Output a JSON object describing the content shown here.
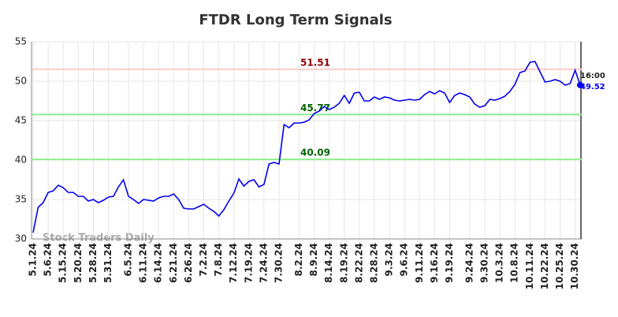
{
  "chart_data": {
    "type": "line",
    "title": "FTDR Long Term Signals",
    "watermark": "Stock Traders Daily",
    "categories": [
      "5.1.24",
      null,
      null,
      "5.6.24",
      null,
      null,
      "5.15.24",
      null,
      null,
      "5.20.24",
      null,
      null,
      "5.28.24",
      null,
      null,
      "5.31.24",
      null,
      null,
      null,
      "6.5.24",
      null,
      null,
      "6.11.24",
      null,
      null,
      "6.14.24",
      null,
      null,
      "6.21.24",
      null,
      null,
      "6.26.24",
      null,
      null,
      "7.2.24",
      null,
      null,
      "7.8.24",
      null,
      null,
      "7.12.24",
      null,
      null,
      "7.19.24",
      null,
      null,
      "7.24.24",
      null,
      null,
      "7.30.24",
      null,
      null,
      null,
      "8.2.24",
      null,
      null,
      "8.9.24",
      null,
      null,
      "8.14.24",
      null,
      null,
      "8.19.24",
      null,
      null,
      "8.22.24",
      null,
      null,
      "8.28.24",
      null,
      null,
      "9.3.24",
      null,
      null,
      "9.6.24",
      null,
      null,
      "9.11.24",
      null,
      null,
      "9.16.24",
      null,
      null,
      "9.19.24",
      null,
      null,
      null,
      "9.24.24",
      null,
      null,
      "9.30.24",
      null,
      null,
      "10.3.24",
      null,
      null,
      "10.8.24",
      null,
      null,
      "10.11.24",
      null,
      null,
      "10.22.24",
      null,
      null,
      "10.25.24",
      null,
      null,
      "10.30.24",
      null
    ],
    "series": [
      {
        "name": "FTDR",
        "color": "#0000ee",
        "values": [
          30.8,
          34.0,
          34.6,
          35.9,
          36.1,
          36.8,
          36.5,
          35.9,
          35.9,
          35.4,
          35.4,
          34.8,
          35.0,
          34.6,
          34.9,
          35.3,
          35.4,
          36.6,
          37.5,
          35.4,
          35.0,
          34.5,
          35.0,
          34.9,
          34.8,
          35.2,
          35.4,
          35.4,
          35.7,
          35.0,
          33.9,
          33.8,
          33.8,
          34.1,
          34.4,
          33.9,
          33.5,
          32.9,
          33.7,
          34.8,
          35.8,
          37.6,
          36.7,
          37.3,
          37.5,
          36.6,
          36.9,
          39.5,
          39.7,
          39.5,
          44.5,
          44.1,
          44.7,
          44.7,
          44.8,
          45.1,
          45.9,
          46.2,
          46.8,
          46.4,
          46.7,
          47.2,
          48.2,
          47.2,
          48.5,
          48.6,
          47.5,
          47.5,
          48.0,
          47.7,
          48.0,
          47.9,
          47.6,
          47.5,
          47.6,
          47.7,
          47.6,
          47.7,
          48.3,
          48.7,
          48.4,
          48.8,
          48.5,
          47.3,
          48.2,
          48.5,
          48.3,
          48.0,
          47.1,
          46.7,
          46.9,
          47.7,
          47.6,
          47.8,
          48.1,
          48.7,
          49.6,
          51.1,
          51.3,
          52.4,
          52.5,
          51.2,
          49.9,
          50.0,
          50.2,
          50.0,
          49.5,
          49.7,
          51.4,
          49.52
        ]
      }
    ],
    "last_label": "16:00",
    "hlines": [
      {
        "value": 51.51,
        "color": "#ffcccc",
        "label_color": "#8b0000"
      },
      {
        "value": 45.77,
        "color": "#90ee90",
        "label_color": "#006400"
      },
      {
        "value": 40.09,
        "color": "#90ee90",
        "label_color": "#006400"
      }
    ],
    "ylim": [
      30,
      55
    ],
    "yticks": [
      30,
      35,
      40,
      45,
      50,
      55
    ],
    "grid": true
  }
}
